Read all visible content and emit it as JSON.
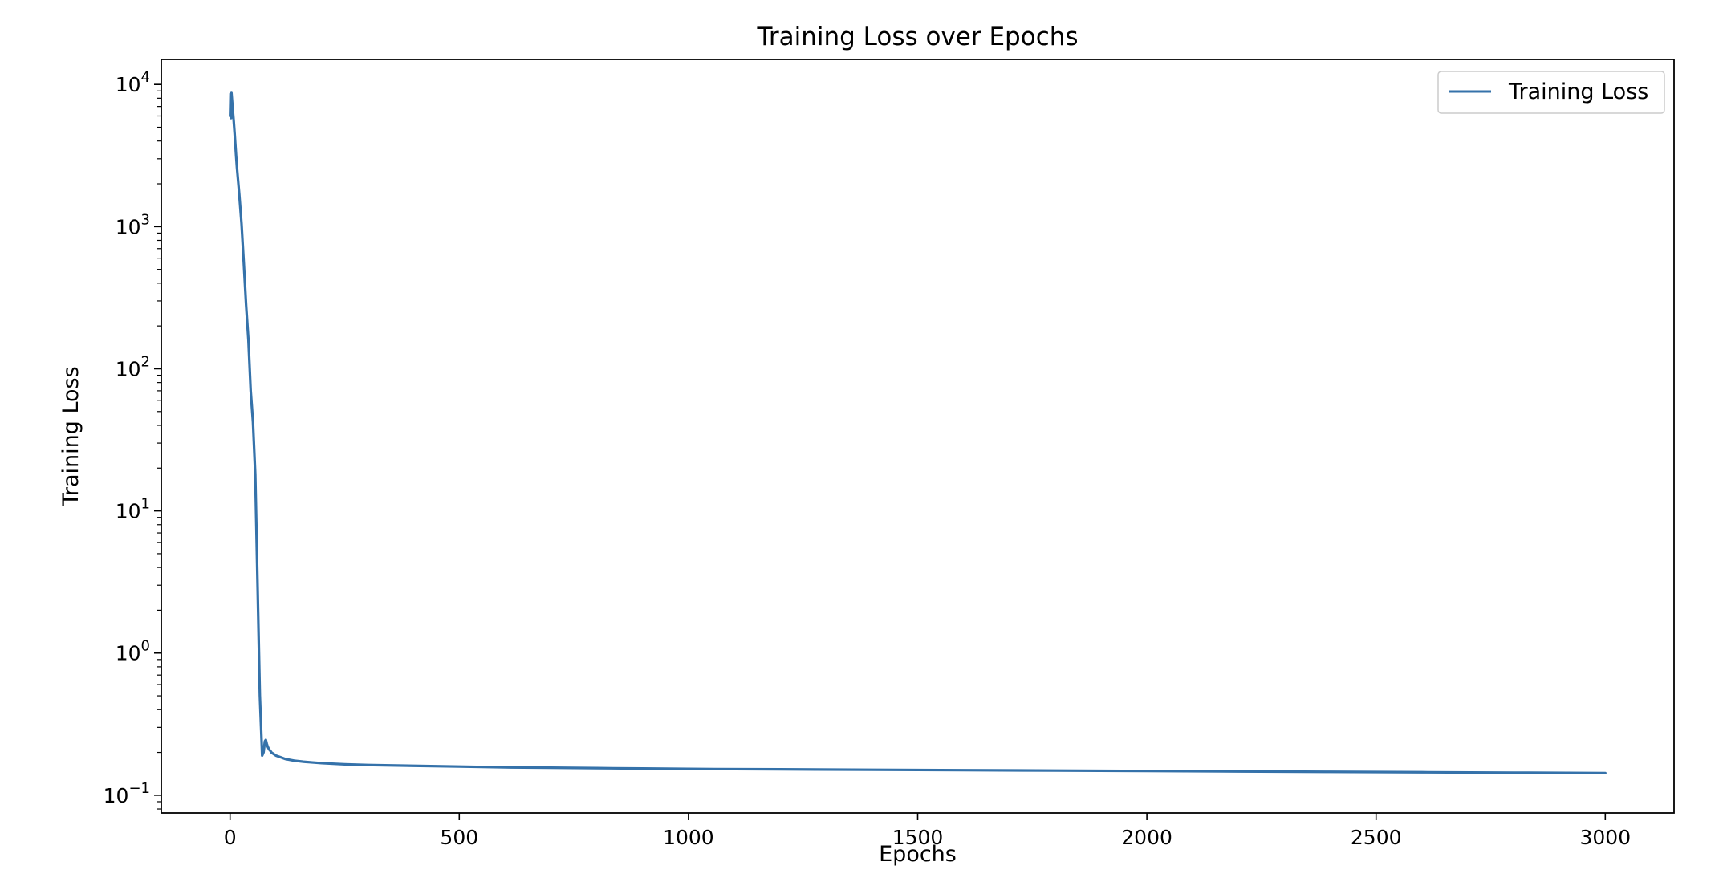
{
  "chart_data": {
    "type": "line",
    "title": "Training Loss over Epochs",
    "xlabel": "Epochs",
    "ylabel": "Training Loss",
    "xlim": [
      -150,
      3150
    ],
    "ylim": [
      0.075,
      15000
    ],
    "yscale": "log",
    "xticks": [
      0,
      500,
      1000,
      1500,
      2000,
      2500,
      3000
    ],
    "xtick_labels": [
      "0",
      "500",
      "1000",
      "1500",
      "2000",
      "2500",
      "3000"
    ],
    "yticks": [
      0.1,
      1,
      10,
      100,
      1000,
      10000
    ],
    "ytick_labels": [
      {
        "base": "10",
        "exp": "−1"
      },
      {
        "base": "10",
        "exp": "0"
      },
      {
        "base": "10",
        "exp": "1"
      },
      {
        "base": "10",
        "exp": "2"
      },
      {
        "base": "10",
        "exp": "3"
      },
      {
        "base": "10",
        "exp": "4"
      }
    ],
    "grid": false,
    "legend_position": "top-right",
    "series": [
      {
        "name": "Training Loss",
        "color": "#3572aa",
        "x": [
          0,
          1,
          2,
          3,
          5,
          8,
          10,
          13,
          15,
          20,
          25,
          30,
          35,
          40,
          45,
          50,
          55,
          60,
          65,
          70,
          73,
          76,
          78,
          80,
          82,
          85,
          88,
          90,
          95,
          100,
          110,
          120,
          140,
          160,
          180,
          200,
          250,
          300,
          400,
          500,
          600,
          700,
          800,
          900,
          1000,
          1200,
          1400,
          1600,
          1800,
          2000,
          2200,
          2400,
          2600,
          2800,
          3000
        ],
        "y": [
          6000,
          8600,
          5800,
          8700,
          7200,
          5500,
          4500,
          3200,
          2600,
          1700,
          1050,
          550,
          280,
          160,
          70,
          42,
          18,
          3,
          0.5,
          0.19,
          0.2,
          0.24,
          0.245,
          0.23,
          0.22,
          0.21,
          0.205,
          0.2,
          0.195,
          0.19,
          0.185,
          0.18,
          0.175,
          0.172,
          0.17,
          0.168,
          0.165,
          0.163,
          0.161,
          0.159,
          0.157,
          0.156,
          0.155,
          0.154,
          0.153,
          0.152,
          0.151,
          0.15,
          0.149,
          0.148,
          0.147,
          0.146,
          0.145,
          0.144,
          0.143
        ]
      }
    ]
  }
}
